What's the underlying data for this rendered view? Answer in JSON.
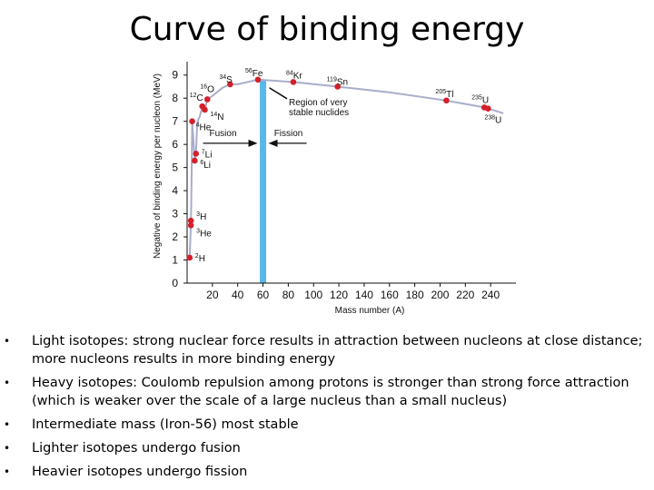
{
  "slide": {
    "title": "Curve of binding energy",
    "bullets": [
      "Light isotopes: strong nuclear force results in attraction between nucleons at close distance; more nucleons results in more binding energy",
      "Heavy isotopes: Coulomb repulsion among protons is stronger than strong force attraction (which is weaker over the scale of a large nucleus than a small nucleus)",
      "Intermediate mass (Iron-56) most stable",
      "Lighter isotopes undergo fusion",
      "Heavier isotopes undergo fission"
    ]
  },
  "chart_data": {
    "type": "line",
    "title": "",
    "xlabel": "Mass number (A)",
    "ylabel": "Negative of binding energy per nucleon (MeV)",
    "xlim": [
      0,
      260
    ],
    "ylim": [
      0,
      9.5
    ],
    "xticks": [
      20,
      40,
      60,
      80,
      100,
      120,
      140,
      160,
      180,
      200,
      220,
      240
    ],
    "yticks": [
      0,
      1,
      2,
      3,
      4,
      5,
      6,
      7,
      8,
      9
    ],
    "grid": false,
    "legend": "none",
    "colors": {
      "curve": "#a8aecb",
      "points": "#d4202a",
      "band": "#5ab8e8",
      "text": "#111111"
    },
    "curve": {
      "x": [
        2,
        3,
        3.5,
        4,
        6,
        7,
        8,
        9,
        10,
        12,
        14,
        16,
        20,
        28,
        34,
        40,
        56,
        84,
        119,
        160,
        205,
        235,
        238,
        250
      ],
      "y": [
        1.1,
        2.6,
        4.5,
        7.0,
        5.3,
        5.6,
        6.9,
        7.1,
        7.2,
        7.65,
        7.5,
        7.95,
        8.1,
        8.45,
        8.6,
        8.6,
        8.8,
        8.7,
        8.5,
        8.25,
        7.9,
        7.6,
        7.55,
        7.35
      ]
    },
    "points": [
      {
        "label": "2H",
        "mass": "2",
        "symbol": "H",
        "x": 2,
        "y": 1.1
      },
      {
        "label": "3H",
        "mass": "3",
        "symbol": "H",
        "x": 3,
        "y": 2.7
      },
      {
        "label": "3He",
        "mass": "3",
        "symbol": "He",
        "x": 3,
        "y": 2.5
      },
      {
        "label": "4He",
        "mass": "4",
        "symbol": "He",
        "x": 4,
        "y": 7.0
      },
      {
        "label": "6Li",
        "mass": "6",
        "symbol": "Li",
        "x": 6,
        "y": 5.3
      },
      {
        "label": "7Li",
        "mass": "7",
        "symbol": "Li",
        "x": 7,
        "y": 5.6
      },
      {
        "label": "12C",
        "mass": "12",
        "symbol": "C",
        "x": 12,
        "y": 7.65
      },
      {
        "label": "14N",
        "mass": "14",
        "symbol": "N",
        "x": 14,
        "y": 7.5
      },
      {
        "label": "16O",
        "mass": "16",
        "symbol": "O",
        "x": 16,
        "y": 7.95
      },
      {
        "label": "34S",
        "mass": "34",
        "symbol": "S",
        "x": 34,
        "y": 8.6
      },
      {
        "label": "56Fe",
        "mass": "56",
        "symbol": "Fe",
        "x": 56,
        "y": 8.8
      },
      {
        "label": "84Kr",
        "mass": "84",
        "symbol": "Kr",
        "x": 84,
        "y": 8.7
      },
      {
        "label": "119Sn",
        "mass": "119",
        "symbol": "Sn",
        "x": 119,
        "y": 8.5
      },
      {
        "label": "205Tl",
        "mass": "205",
        "symbol": "Tl",
        "x": 205,
        "y": 7.9
      },
      {
        "label": "235U",
        "mass": "235",
        "symbol": "U",
        "x": 235,
        "y": 7.6
      },
      {
        "label": "238U",
        "mass": "238",
        "symbol": "U",
        "x": 238,
        "y": 7.55
      }
    ],
    "stable_band": {
      "x": 60,
      "y_from": 0,
      "y_to": 8.8
    },
    "annotations": {
      "region_label": [
        "Region of very",
        "stable nuclides"
      ],
      "fusion_label": "Fusion",
      "fission_label": "Fission"
    }
  }
}
